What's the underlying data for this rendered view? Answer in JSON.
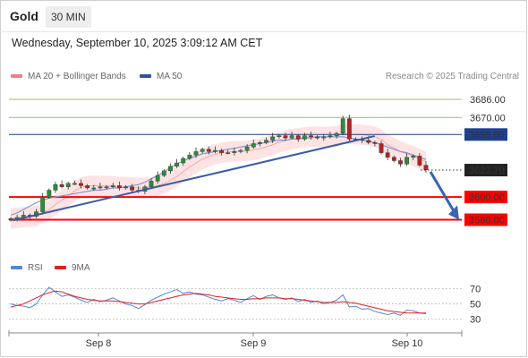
{
  "header": {
    "title": "Gold",
    "interval": "30 MIN",
    "datetime": "Wednesday, September 10, 2025 3:09:12 AM CET"
  },
  "legend": {
    "items": [
      {
        "label": "MA 20 + Bollinger Bands",
        "color": "#f08080"
      },
      {
        "label": "MA 50",
        "color": "#2f5596"
      }
    ],
    "copyright": "Research © 2025 Trading Central"
  },
  "rsi_legend": {
    "items": [
      {
        "label": "RSI",
        "color": "#5b84d6"
      },
      {
        "label": "9MA",
        "color": "#e02020"
      }
    ]
  },
  "colors": {
    "up_candle": "#2e8b3a",
    "down_candle": "#b22222",
    "support": "#ff0000",
    "resistance": "#1f3f8f",
    "target_lines": "#8cc56a",
    "current_price_bg": "#222222",
    "arrow": "#3a64b0",
    "bollinger_fill": "#fde3e3",
    "trendline": "#3a5ca6"
  },
  "chart_data": {
    "type": "candlestick",
    "title": "Gold",
    "timeframe": "30 MIN",
    "x_ticks": [
      "Sep 8",
      "Sep 9",
      "Sep 10"
    ],
    "y_ticks": [],
    "ylim": [
      3567,
      3697
    ],
    "grid": false,
    "legend_position": "top-left",
    "price_path": [
      3581,
      3582,
      3584,
      3583,
      3587,
      3600,
      3606,
      3611,
      3609,
      3612,
      3612,
      3610,
      3608,
      3608,
      3609,
      3609,
      3610,
      3608,
      3609,
      3606,
      3605,
      3609,
      3614,
      3619,
      3623,
      3627,
      3630,
      3634,
      3637,
      3640,
      3642,
      3640,
      3641,
      3639,
      3639,
      3640,
      3641,
      3644,
      3647,
      3648,
      3650,
      3653,
      3654,
      3652,
      3654,
      3651,
      3654,
      3653,
      3652,
      3653,
      3654,
      3656,
      3669,
      3651,
      3651,
      3650,
      3648,
      3647,
      3639,
      3635,
      3632,
      3629,
      3635,
      3636,
      3628,
      3624
    ],
    "levels": [
      {
        "label": "3686.00",
        "value": 3686,
        "kind": "target"
      },
      {
        "label": "3670.00",
        "value": 3670,
        "kind": "target"
      },
      {
        "label": "3655.00",
        "value": 3655,
        "kind": "resistance"
      },
      {
        "label": "3623.70",
        "value": 3623.7,
        "kind": "current"
      },
      {
        "label": "3600.00",
        "value": 3600,
        "kind": "support"
      },
      {
        "label": "3580.00",
        "value": 3580,
        "kind": "support"
      }
    ],
    "ma50": [
      3584,
      3586,
      3589,
      3592,
      3595,
      3597,
      3599,
      3600,
      3601,
      3602,
      3603,
      3604,
      3605,
      3606,
      3606,
      3607,
      3608,
      3608,
      3609,
      3610,
      3611,
      3613,
      3616,
      3619,
      3622,
      3626,
      3629,
      3632,
      3634,
      3636,
      3638,
      3639,
      3640,
      3641,
      3642,
      3643,
      3644,
      3645,
      3646,
      3647,
      3648,
      3649,
      3650,
      3650,
      3651,
      3651,
      3652,
      3652,
      3653,
      3653,
      3653,
      3653,
      3653,
      3652,
      3651,
      3650,
      3649,
      3648,
      3646,
      3644,
      3642,
      3640,
      3639,
      3637,
      3635,
      3633
    ],
    "trendline": {
      "from": {
        "index": 4,
        "value": 3581
      },
      "to": {
        "index": 55,
        "value": 3656
      }
    },
    "projection": {
      "from_value": 3623,
      "to_value": 3580
    },
    "rsi": {
      "ylim": [
        20,
        85
      ],
      "y_ticks": [
        70,
        50,
        30
      ],
      "rsi_values": [
        50,
        48,
        47,
        45,
        50,
        62,
        72,
        66,
        60,
        62,
        59,
        55,
        52,
        56,
        53,
        55,
        58,
        54,
        50,
        48,
        44,
        49,
        55,
        59,
        63,
        66,
        69,
        64,
        66,
        63,
        62,
        59,
        56,
        54,
        57,
        55,
        52,
        57,
        61,
        56,
        60,
        62,
        58,
        56,
        58,
        53,
        56,
        52,
        54,
        50,
        52,
        55,
        62,
        46,
        47,
        43,
        44,
        40,
        38,
        36,
        38,
        35,
        42,
        41,
        38,
        37
      ],
      "ma9_values": [
        46,
        48,
        50,
        54,
        58,
        62,
        65,
        67,
        66,
        63,
        60,
        58,
        56,
        55,
        54,
        54,
        54,
        53,
        52,
        51,
        50,
        50,
        52,
        54,
        56,
        58,
        60,
        62,
        63,
        64,
        63,
        62,
        60,
        59,
        58,
        57,
        56,
        56,
        57,
        57,
        58,
        58,
        58,
        57,
        57,
        56,
        55,
        54,
        53,
        52,
        52,
        52,
        53,
        52,
        51,
        49,
        47,
        45,
        43,
        41,
        40,
        39,
        38,
        38,
        38,
        38
      ]
    }
  }
}
